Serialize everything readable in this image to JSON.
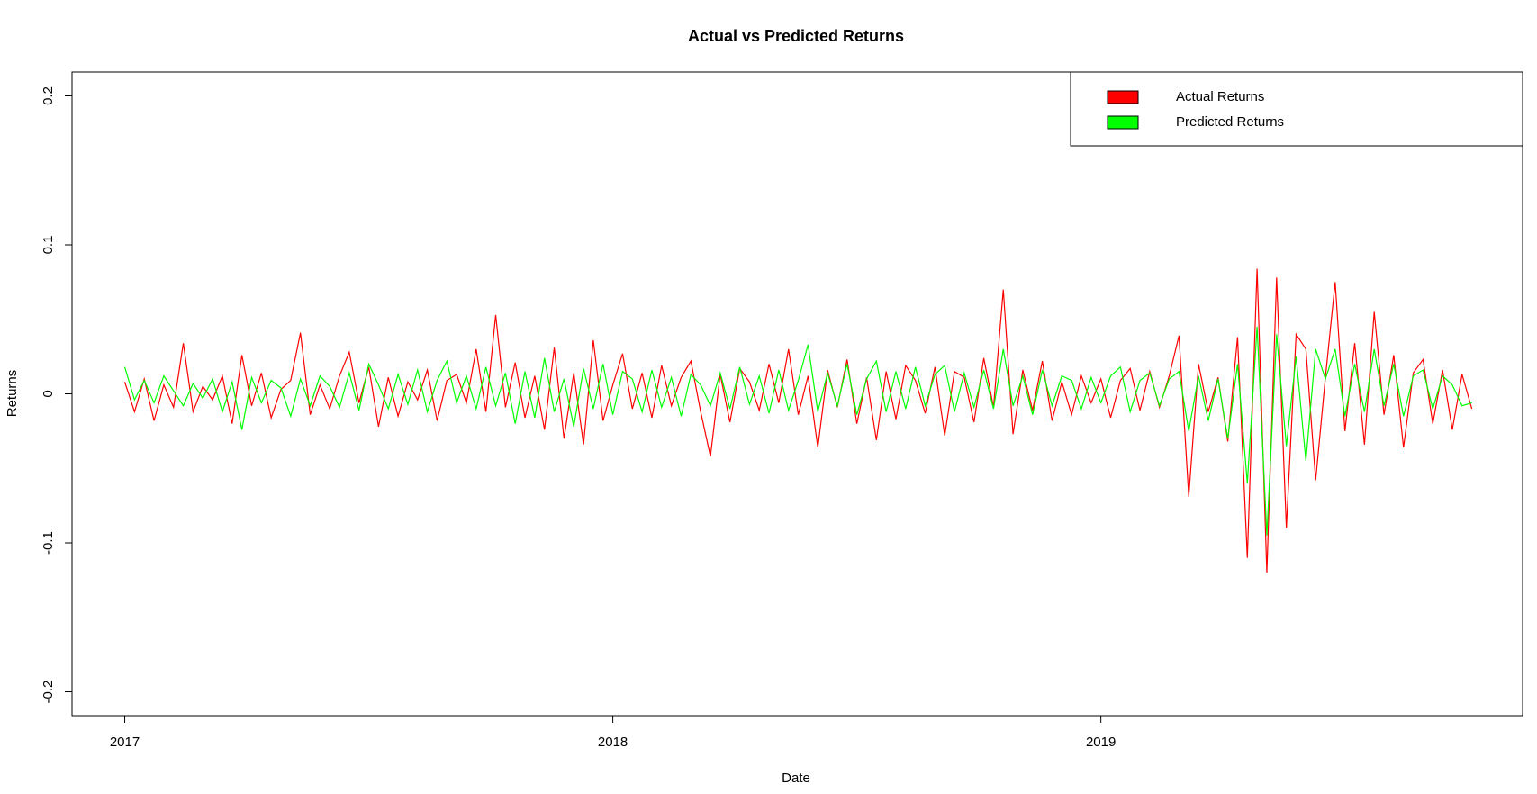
{
  "chart_data": {
    "type": "line",
    "title": "Actual vs Predicted Returns",
    "xlabel": "Date",
    "ylabel": "Returns",
    "x": [
      2017.0,
      2017.02,
      2017.04,
      2017.06,
      2017.08,
      2017.1,
      2017.12,
      2017.14,
      2017.16,
      2017.18,
      2017.2,
      2017.22,
      2017.24,
      2017.26,
      2017.28,
      2017.3,
      2017.32,
      2017.34,
      2017.36,
      2017.38,
      2017.4,
      2017.42,
      2017.44,
      2017.46,
      2017.48,
      2017.5,
      2017.52,
      2017.54,
      2017.56,
      2017.58,
      2017.6,
      2017.62,
      2017.64,
      2017.66,
      2017.68,
      2017.7,
      2017.72,
      2017.74,
      2017.76,
      2017.78,
      2017.8,
      2017.82,
      2017.84,
      2017.86,
      2017.88,
      2017.9,
      2017.92,
      2017.94,
      2017.96,
      2017.98,
      2018.0,
      2018.02,
      2018.04,
      2018.06,
      2018.08,
      2018.1,
      2018.12,
      2018.14,
      2018.16,
      2018.18,
      2018.2,
      2018.22,
      2018.24,
      2018.26,
      2018.28,
      2018.3,
      2018.32,
      2018.34,
      2018.36,
      2018.38,
      2018.4,
      2018.42,
      2018.44,
      2018.46,
      2018.48,
      2018.5,
      2018.52,
      2018.54,
      2018.56,
      2018.58,
      2018.6,
      2018.62,
      2018.64,
      2018.66,
      2018.68,
      2018.7,
      2018.72,
      2018.74,
      2018.76,
      2018.78,
      2018.8,
      2018.82,
      2018.84,
      2018.86,
      2018.88,
      2018.9,
      2018.92,
      2018.94,
      2018.96,
      2018.98,
      2019.0,
      2019.02,
      2019.04,
      2019.06,
      2019.08,
      2019.1,
      2019.12,
      2019.14,
      2019.16,
      2019.18,
      2019.2,
      2019.22,
      2019.24,
      2019.26,
      2019.28,
      2019.3,
      2019.32,
      2019.34,
      2019.36,
      2019.38,
      2019.4,
      2019.42,
      2019.44,
      2019.46,
      2019.48,
      2019.5,
      2019.52,
      2019.54,
      2019.56,
      2019.58,
      2019.6,
      2019.62,
      2019.64,
      2019.66,
      2019.68,
      2019.7,
      2019.72,
      2019.74,
      2019.76
    ],
    "series": [
      {
        "name": "Actual Returns",
        "color": "#ff0000",
        "values": [
          0.008,
          -0.012,
          0.01,
          -0.018,
          0.006,
          -0.009,
          0.034,
          -0.012,
          0.005,
          -0.004,
          0.012,
          -0.02,
          0.026,
          -0.008,
          0.014,
          -0.016,
          0.003,
          0.009,
          0.041,
          -0.014,
          0.006,
          -0.01,
          0.012,
          0.028,
          -0.006,
          0.018,
          -0.022,
          0.011,
          -0.015,
          0.008,
          -0.004,
          0.016,
          -0.018,
          0.009,
          0.013,
          -0.006,
          0.03,
          -0.012,
          0.053,
          -0.009,
          0.021,
          -0.016,
          0.012,
          -0.024,
          0.031,
          -0.03,
          0.014,
          -0.034,
          0.036,
          -0.018,
          0.006,
          0.027,
          -0.01,
          0.014,
          -0.016,
          0.019,
          -0.008,
          0.011,
          0.022,
          -0.012,
          -0.042,
          0.013,
          -0.019,
          0.017,
          0.008,
          -0.011,
          0.02,
          -0.006,
          0.03,
          -0.014,
          0.012,
          -0.036,
          0.016,
          -0.009,
          0.023,
          -0.02,
          0.011,
          -0.031,
          0.015,
          -0.017,
          0.019,
          0.009,
          -0.013,
          0.018,
          -0.028,
          0.015,
          0.011,
          -0.019,
          0.024,
          -0.009,
          0.07,
          -0.027,
          0.016,
          -0.011,
          0.022,
          -0.018,
          0.008,
          -0.014,
          0.012,
          -0.006,
          0.01,
          -0.016,
          0.009,
          0.017,
          -0.011,
          0.015,
          -0.009,
          0.012,
          0.039,
          -0.069,
          0.02,
          -0.012,
          0.011,
          -0.032,
          0.038,
          -0.11,
          0.084,
          -0.12,
          0.078,
          -0.09,
          0.04,
          0.03,
          -0.058,
          0.011,
          0.075,
          -0.025,
          0.034,
          -0.034,
          0.055,
          -0.014,
          0.026,
          -0.036,
          0.014,
          0.023,
          -0.02,
          0.016,
          -0.024,
          0.013,
          -0.01
        ]
      },
      {
        "name": "Predicted Returns",
        "color": "#00ff00",
        "values": [
          0.018,
          -0.004,
          0.009,
          -0.006,
          0.012,
          0.002,
          -0.008,
          0.007,
          -0.003,
          0.01,
          -0.012,
          0.008,
          -0.024,
          0.011,
          -0.006,
          0.009,
          0.004,
          -0.015,
          0.01,
          -0.008,
          0.012,
          0.005,
          -0.009,
          0.014,
          -0.011,
          0.02,
          0.006,
          -0.01,
          0.013,
          -0.007,
          0.016,
          -0.012,
          0.009,
          0.022,
          -0.006,
          0.012,
          -0.01,
          0.018,
          -0.008,
          0.014,
          -0.02,
          0.015,
          -0.016,
          0.024,
          -0.012,
          0.01,
          -0.022,
          0.017,
          -0.01,
          0.02,
          -0.014,
          0.015,
          0.01,
          -0.012,
          0.016,
          -0.009,
          0.011,
          -0.015,
          0.013,
          0.006,
          -0.008,
          0.014,
          -0.01,
          0.018,
          -0.007,
          0.012,
          -0.013,
          0.016,
          -0.011,
          0.009,
          0.033,
          -0.012,
          0.014,
          -0.008,
          0.02,
          -0.014,
          0.01,
          0.022,
          -0.012,
          0.015,
          -0.01,
          0.018,
          -0.008,
          0.013,
          0.019,
          -0.012,
          0.014,
          -0.009,
          0.016,
          -0.01,
          0.03,
          -0.008,
          0.012,
          -0.014,
          0.016,
          -0.008,
          0.012,
          0.009,
          -0.01,
          0.011,
          -0.006,
          0.012,
          0.018,
          -0.012,
          0.009,
          0.014,
          -0.008,
          0.01,
          0.015,
          -0.025,
          0.012,
          -0.018,
          0.01,
          -0.03,
          0.02,
          -0.06,
          0.045,
          -0.095,
          0.04,
          -0.035,
          0.025,
          -0.045,
          0.03,
          0.01,
          0.03,
          -0.015,
          0.02,
          -0.012,
          0.03,
          -0.008,
          0.02,
          -0.015,
          0.012,
          0.016,
          -0.01,
          0.012,
          0.006,
          -0.008,
          -0.006
        ]
      }
    ],
    "xlim": [
      2016.892,
      2019.864
    ],
    "xticks": [
      2017,
      2018,
      2019
    ],
    "ylim": [
      -0.216,
      0.216
    ],
    "yticks": [
      -0.2,
      -0.1,
      0.0,
      0.1,
      0.2
    ],
    "grid": false,
    "legend": "topright"
  }
}
